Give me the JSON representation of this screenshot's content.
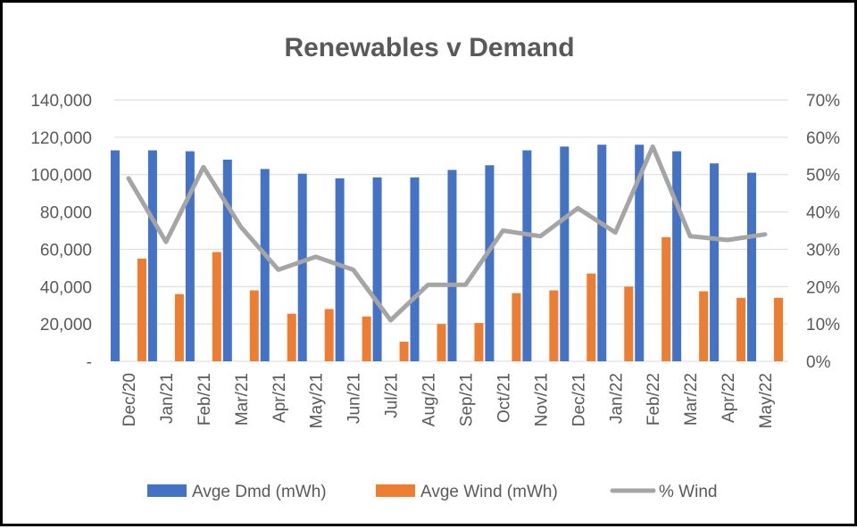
{
  "chart_data": {
    "type": "bar",
    "title": "Renewables v Demand",
    "categories": [
      "Dec/20",
      "Jan/21",
      "Feb/21",
      "Mar/21",
      "Apr/21",
      "May/21",
      "Jun/21",
      "Jul/21",
      "Aug/21",
      "Sep/21",
      "Oct/21",
      "Nov/21",
      "Dec/21",
      "Jan/22",
      "Feb/22",
      "Mar/22",
      "Apr/22",
      "May/22"
    ],
    "series": [
      {
        "name": "Avge Dmd (mWh)",
        "type": "bar",
        "axis": "left",
        "color": "#4472C4",
        "values": [
          113000,
          113000,
          112500,
          108000,
          103000,
          100500,
          98000,
          98500,
          98500,
          102500,
          105000,
          113000,
          115000,
          116000,
          116000,
          112500,
          106000,
          101000
        ]
      },
      {
        "name": "Avge Wind (mWh)",
        "type": "bar",
        "axis": "left",
        "color": "#ED7D31",
        "values": [
          55000,
          36000,
          58500,
          38000,
          25500,
          28000,
          24000,
          10500,
          20000,
          20500,
          36500,
          38000,
          47000,
          40000,
          66500,
          37500,
          34000,
          34000
        ]
      },
      {
        "name": "% Wind",
        "type": "line",
        "axis": "right",
        "color": "#A5A5A5",
        "values": [
          0.49,
          0.32,
          0.52,
          0.36,
          0.245,
          0.28,
          0.245,
          0.11,
          0.205,
          0.205,
          0.35,
          0.335,
          0.41,
          0.345,
          0.575,
          0.335,
          0.325,
          0.34
        ]
      }
    ],
    "y_left": {
      "min": 0,
      "max": 140000,
      "ticks": [
        "-",
        "20,000",
        "40,000",
        "60,000",
        "80,000",
        "100,000",
        "120,000",
        "140,000"
      ]
    },
    "y_right": {
      "min": 0,
      "max": 0.7,
      "ticks": [
        "0%",
        "10%",
        "20%",
        "30%",
        "40%",
        "50%",
        "60%",
        "70%"
      ]
    },
    "grid": true,
    "legend": "bottom"
  }
}
